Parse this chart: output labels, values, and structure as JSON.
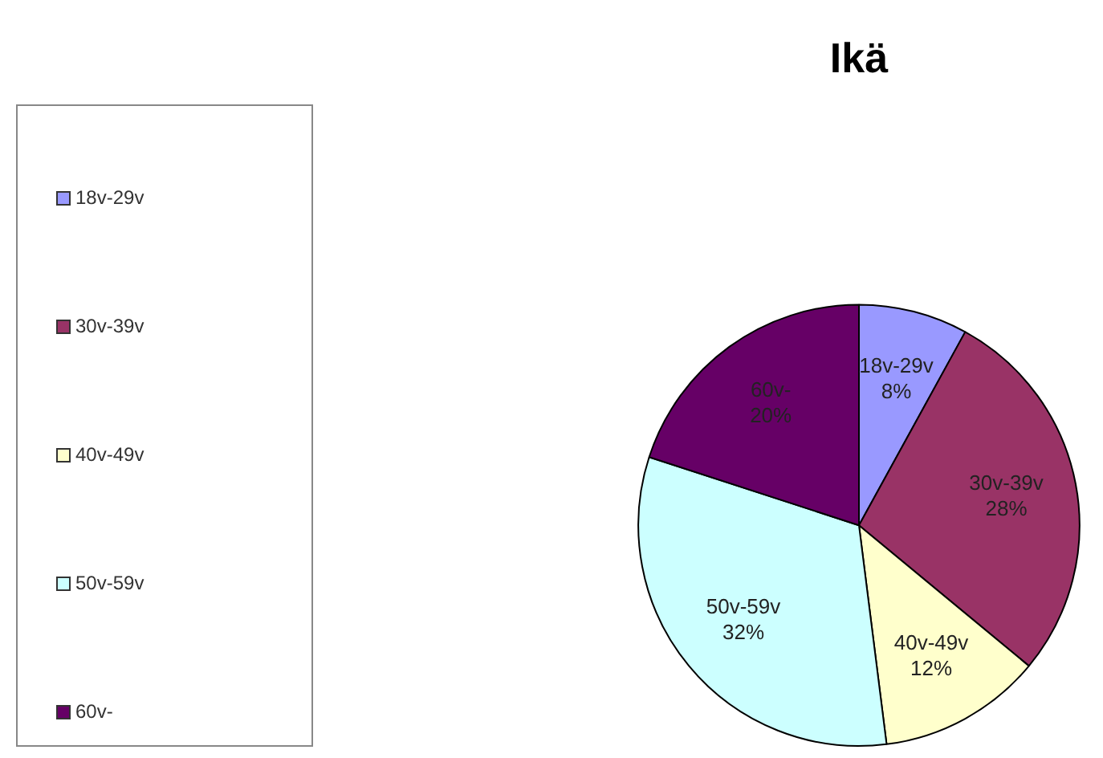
{
  "chart_data": {
    "type": "pie",
    "title": "Ikä",
    "categories": [
      "18v-29v",
      "30v-39v",
      "40v-49v",
      "50v-59v",
      "60v-"
    ],
    "values": [
      8,
      28,
      12,
      32,
      20
    ],
    "value_labels": [
      "8%",
      "28%",
      "12%",
      "32%",
      "20%"
    ],
    "colors": [
      "#9999ff",
      "#993366",
      "#ffffcc",
      "#ccffff",
      "#660066"
    ],
    "legend": "left"
  }
}
